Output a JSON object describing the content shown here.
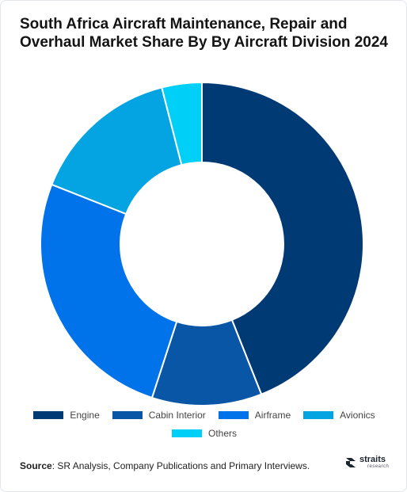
{
  "title": "South Africa Aircraft Maintenance, Repair and Overhaul Market Share By By Aircraft Division 2024",
  "chart_data": {
    "type": "pie",
    "donut": true,
    "categories": [
      "Engine",
      "Cabin Interior",
      "Airframe",
      "Avionics",
      "Others"
    ],
    "values": [
      44,
      11,
      26,
      15,
      4
    ],
    "unit": "%",
    "colors": [
      "#003a75",
      "#0a56a6",
      "#0073ea",
      "#04a4e2",
      "#00cff7"
    ],
    "legend_position": "bottom"
  },
  "source": {
    "label": "Source",
    "text": ": SR Analysis, Company Publications and Primary Interviews."
  },
  "logo": {
    "name": "straits",
    "sub": "research"
  }
}
